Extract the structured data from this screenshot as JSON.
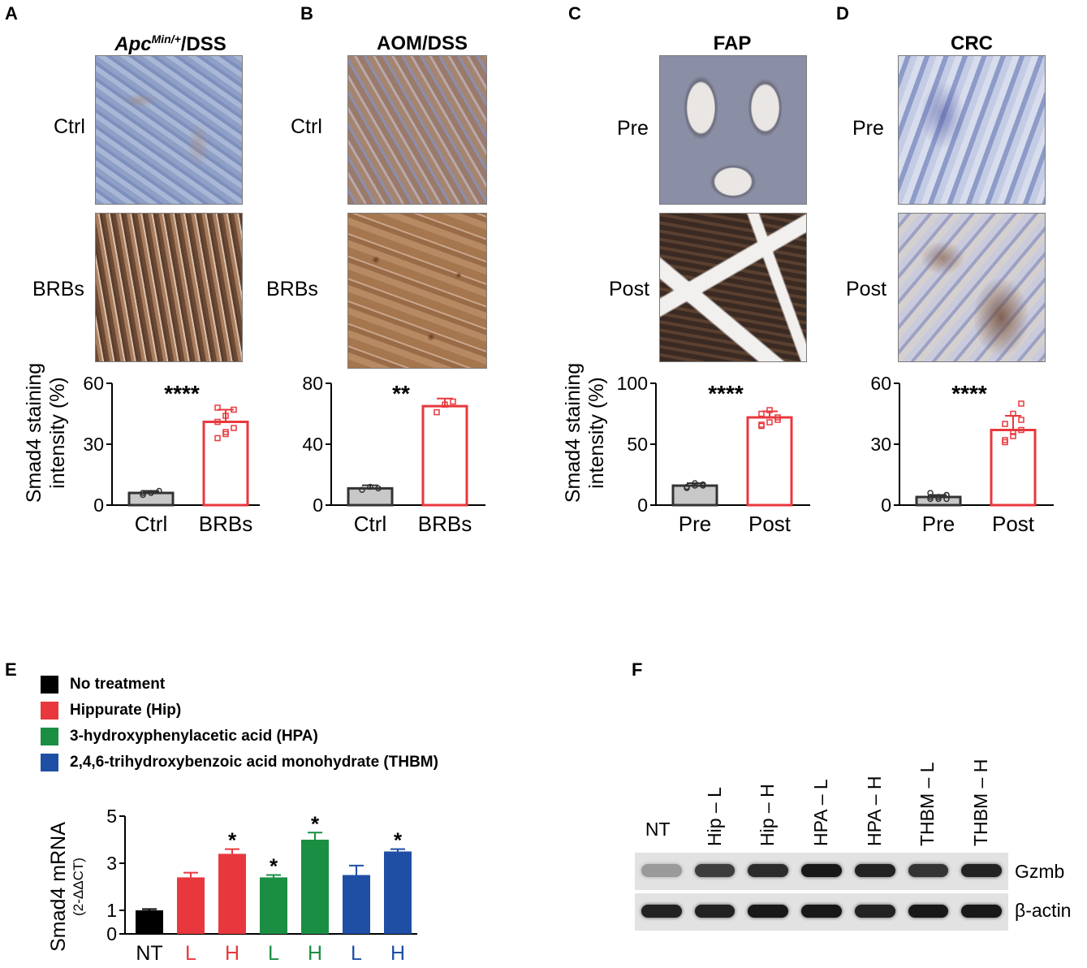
{
  "panels_top": [
    {
      "letter": "A",
      "title_main": "Apc",
      "title_sup": "Min/+",
      "title_rest": "/DSS",
      "row_labels": [
        "Ctrl",
        "BRBs"
      ],
      "ylabel_line1": "Smad4 staining",
      "ylabel_line2": "intensity (%)",
      "img_top": "blue-tissue",
      "img_bottom": "brown-tissue"
    },
    {
      "letter": "B",
      "title_main": "AOM/DSS",
      "title_sup": "",
      "title_rest": "",
      "row_labels": [
        "Ctrl",
        "BRBs"
      ],
      "ylabel_line1": "",
      "ylabel_line2": "",
      "img_top": "mixed-tissue",
      "img_bottom": "brown-tissue"
    },
    {
      "letter": "C",
      "title_main": "FAP",
      "title_sup": "",
      "title_rest": "",
      "row_labels": [
        "Pre",
        "Post"
      ],
      "ylabel_line1": "Smad4 staining",
      "ylabel_line2": "intensity (%)",
      "img_top": "crypt-tissue",
      "img_bottom": "dark-crypt-tissue"
    },
    {
      "letter": "D",
      "title_main": "CRC",
      "title_sup": "",
      "title_rest": "",
      "row_labels": [
        "Pre",
        "Post"
      ],
      "ylabel_line1": "",
      "ylabel_line2": "",
      "img_top": "blue-tissue",
      "img_bottom": "mixed-tissue"
    }
  ],
  "chart_data": [
    {
      "id": "A",
      "type": "bar",
      "categories": [
        "Ctrl",
        "BRBs"
      ],
      "values": [
        6,
        41
      ],
      "errors": [
        1,
        6
      ],
      "points": [
        [
          5,
          6,
          7,
          6
        ],
        [
          33,
          36,
          38,
          41,
          44,
          47,
          48,
          35
        ]
      ],
      "ylim": [
        0,
        60
      ],
      "yticks": [
        "0",
        "30",
        "60"
      ],
      "significance": "****",
      "colors": [
        "#c8c8c8",
        "#ffffff"
      ],
      "edge_colors": [
        "#333333",
        "#e8383d"
      ]
    },
    {
      "id": "B",
      "type": "bar",
      "categories": [
        "Ctrl",
        "BRBs"
      ],
      "values": [
        11,
        65
      ],
      "errors": [
        2,
        5
      ],
      "points": [
        [
          10,
          12,
          11
        ],
        [
          61,
          66,
          68
        ]
      ],
      "ylim": [
        0,
        80
      ],
      "yticks": [
        "0",
        "40",
        "80"
      ],
      "significance": "**",
      "colors": [
        "#c8c8c8",
        "#ffffff"
      ],
      "edge_colors": [
        "#333333",
        "#e8383d"
      ]
    },
    {
      "id": "C",
      "type": "bar",
      "categories": [
        "Pre",
        "Post"
      ],
      "values": [
        16,
        72
      ],
      "errors": [
        2,
        5
      ],
      "points": [
        [
          14,
          16,
          17,
          15,
          18,
          16
        ],
        [
          65,
          68,
          72,
          75,
          78,
          70,
          66
        ]
      ],
      "ylim": [
        0,
        100
      ],
      "yticks": [
        "0",
        "50",
        "100"
      ],
      "significance": "****",
      "colors": [
        "#c8c8c8",
        "#ffffff"
      ],
      "edge_colors": [
        "#333333",
        "#e8383d"
      ]
    },
    {
      "id": "D",
      "type": "bar",
      "categories": [
        "Pre",
        "Post"
      ],
      "values": [
        4,
        37
      ],
      "errors": [
        1,
        7
      ],
      "points": [
        [
          3,
          4,
          5,
          4,
          3,
          5,
          6,
          4,
          3
        ],
        [
          31,
          34,
          37,
          40,
          45,
          50,
          32,
          36,
          42
        ]
      ],
      "ylim": [
        0,
        60
      ],
      "yticks": [
        "0",
        "30",
        "60"
      ],
      "significance": "****",
      "colors": [
        "#c8c8c8",
        "#ffffff"
      ],
      "edge_colors": [
        "#333333",
        "#e8383d"
      ]
    },
    {
      "id": "E",
      "type": "bar",
      "categories": [
        "NT",
        "L",
        "H",
        "L",
        "H",
        "L",
        "H"
      ],
      "values": [
        1.0,
        2.4,
        3.4,
        2.4,
        4.0,
        2.5,
        3.5
      ],
      "errors": [
        0.05,
        0.2,
        0.2,
        0.1,
        0.3,
        0.4,
        0.1
      ],
      "significance": [
        "",
        "",
        "*",
        "*",
        "*",
        "",
        "*"
      ],
      "colors": [
        "#000000",
        "#e8383d",
        "#e8383d",
        "#1a8f43",
        "#1a8f43",
        "#1f4fa4",
        "#1f4fa4"
      ],
      "ylim": [
        0,
        5
      ],
      "yticks": [
        "0",
        "1",
        "3",
        "5"
      ],
      "ylabel": "Smad4 mRNA",
      "ylabel_sub": "(2-ΔΔCT)"
    }
  ],
  "panel_e": {
    "letter": "E",
    "legend": [
      {
        "label": "No treatment",
        "color": "#000000"
      },
      {
        "label": "Hippurate (Hip)",
        "color": "#e8383d"
      },
      {
        "label": "3-hydroxyphenylacetic acid (HPA)",
        "color": "#1a8f43"
      },
      {
        "label": "2,4,6-trihydroxybenzoic acid monohydrate (THBM)",
        "color": "#1f4fa4"
      }
    ]
  },
  "panel_f": {
    "letter": "F",
    "lanes": [
      "NT",
      "Hip – L",
      "Hip – H",
      "HPA – L",
      "HPA – H",
      "THBM – L",
      "THBM – H"
    ],
    "bands": [
      "Gzmb",
      "β-actin"
    ],
    "gzmb_intensity": [
      0.25,
      0.75,
      0.85,
      0.95,
      0.9,
      0.8,
      0.9
    ],
    "actin_intensity": [
      0.9,
      0.9,
      0.95,
      0.95,
      0.9,
      0.95,
      0.95
    ]
  }
}
